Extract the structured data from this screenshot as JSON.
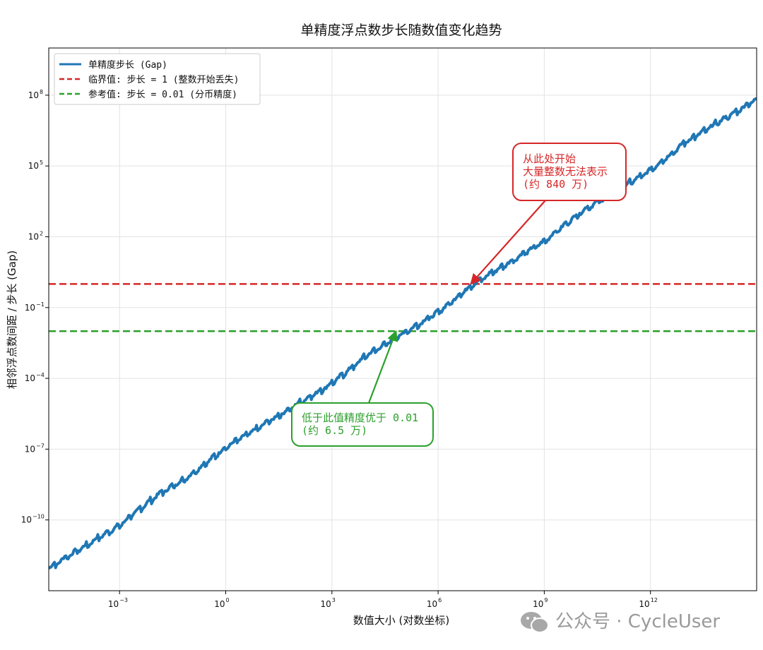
{
  "title": "单精度浮点数步长随数值变化趋势",
  "watermark": "公众号 · CycleUser",
  "chart_data": {
    "type": "line",
    "title": "单精度浮点数步长随数值变化趋势",
    "xlabel": "数值大小 (对数坐标)",
    "ylabel": "相邻浮点数间距 / 步长 (Gap)",
    "x_scale": "log",
    "y_scale": "log",
    "xlim": [
      1e-05,
      1000000000000000.0
    ],
    "ylim": [
      1e-13,
      10000000000.0
    ],
    "grid": true,
    "legend_position": "top-left",
    "x_ticks": [
      {
        "base": "10",
        "exp": "−3",
        "value": 0.001
      },
      {
        "base": "10",
        "exp": "0",
        "value": 1
      },
      {
        "base": "10",
        "exp": "3",
        "value": 1000.0
      },
      {
        "base": "10",
        "exp": "6",
        "value": 1000000.0
      },
      {
        "base": "10",
        "exp": "9",
        "value": 1000000000.0
      },
      {
        "base": "10",
        "exp": "12",
        "value": 1000000000000.0
      }
    ],
    "y_ticks": [
      {
        "base": "10",
        "exp": "8",
        "value": 100000000.0
      },
      {
        "base": "10",
        "exp": "5",
        "value": 100000.0
      },
      {
        "base": "10",
        "exp": "2",
        "value": 100.0
      },
      {
        "base": "10",
        "exp": "−1",
        "value": 0.1
      },
      {
        "base": "10",
        "exp": "−4",
        "value": 0.0001
      },
      {
        "base": "10",
        "exp": "−7",
        "value": 1e-07
      },
      {
        "base": "10",
        "exp": "−10",
        "value": 1e-10
      }
    ],
    "series": [
      {
        "name": "单精度步长 (Gap)",
        "color": "#1f77b4",
        "style": "solid",
        "x": [
          1e-05,
          0.0001,
          0.001,
          0.01,
          0.1,
          1,
          10,
          100,
          1000,
          10000,
          100000,
          1000000,
          10000000,
          100000000,
          1000000000,
          10000000000,
          100000000000,
          1000000000000,
          10000000000000,
          100000000000000,
          1000000000000000
        ],
        "y": [
          9.1e-13,
          7.3e-12,
          5.8e-11,
          9.3e-10,
          7.5e-09,
          1.19e-07,
          9.5e-07,
          7.6e-06,
          6.1e-05,
          0.00098,
          0.0078,
          0.0625,
          1,
          8,
          64,
          1024,
          8192,
          65536,
          1048576,
          8388608,
          67108864
        ]
      },
      {
        "name": "临界值: 步长 = 1 (整数开始丢失)",
        "color": "#d62728",
        "style": "dashed",
        "y_const": 1
      },
      {
        "name": "参考值: 步长 = 0.01 (分币精度)",
        "color": "#2ca02c",
        "style": "dashed",
        "y_const": 0.01
      }
    ],
    "annotations": [
      {
        "id": "red",
        "lines": [
          "从此处开始",
          "大量整数无法表示",
          "(约 840 万)"
        ],
        "color": "#d62728",
        "point": [
          8400000,
          1
        ]
      },
      {
        "id": "green",
        "lines": [
          "低于此值精度优于 0.01",
          "(约 6.5 万)"
        ],
        "color": "#2ca02c",
        "point": [
          65000,
          0.01
        ]
      }
    ]
  }
}
